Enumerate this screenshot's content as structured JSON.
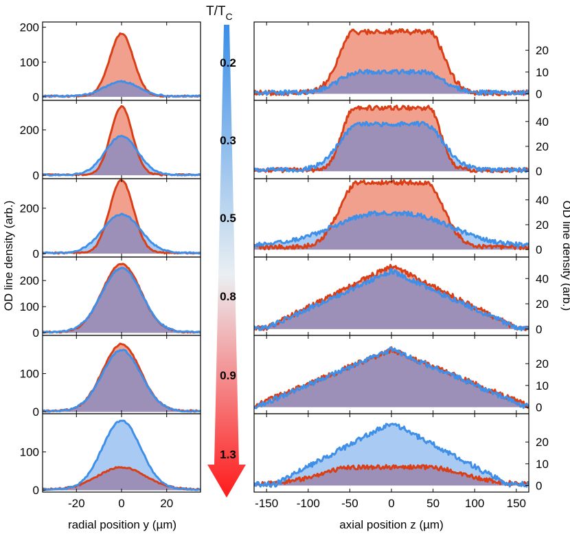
{
  "figure": {
    "left_ylabel": "OD line density (arb.)",
    "right_ylabel": "OD line density (arb.)",
    "left_xlabel": "radial position y (µm)",
    "right_xlabel": "axial position z (µm)",
    "arrow_title_main": "T/T",
    "arrow_title_sub": "C",
    "temperature_labels": [
      "0.2",
      "0.3",
      "0.5",
      "0.8",
      "0.9",
      "1.3"
    ],
    "arrow_colors": {
      "top": "#3a8ee8",
      "middle": "#eaeff2",
      "bottom": "#ff1a1a"
    }
  },
  "colors": {
    "red_line": "#d93e16",
    "blue_line": "#3f8fe8",
    "red_fill": "#f0a08c",
    "blue_fill": "#a9cbf3",
    "overlap_fill": "#9c90b8"
  },
  "chart_data": [
    {
      "type": "area",
      "title": "radial line density profiles",
      "xlabel": "radial position y (µm)",
      "ylabel": "OD line density (arb.)",
      "xlim": [
        -35,
        35
      ],
      "xticks": [
        -20,
        0,
        20
      ],
      "xtick_labels": [
        "-20",
        "0",
        "20"
      ],
      "series_names": [
        "red",
        "blue"
      ],
      "panels": [
        {
          "T_over_Tc": "0.2",
          "ylim": [
            -10,
            215
          ],
          "yticks": [
            0,
            100,
            200
          ],
          "red": {
            "amp": 180,
            "sigma": 5.2,
            "base": 2,
            "noise": 2
          },
          "blue": {
            "amp": 42,
            "sigma": 7.5,
            "base": 2,
            "noise": 2
          }
        },
        {
          "T_over_Tc": "0.3",
          "ylim": [
            -15,
            330
          ],
          "yticks": [
            0,
            200
          ],
          "red": {
            "amp": 300,
            "sigma": 4.8,
            "base": 2,
            "noise": 3
          },
          "blue": {
            "amp": 170,
            "sigma": 7.2,
            "base": 2,
            "noise": 3
          }
        },
        {
          "T_over_Tc": "0.5",
          "ylim": [
            -15,
            330
          ],
          "yticks": [
            0,
            200
          ],
          "red": {
            "amp": 320,
            "sigma": 5.3,
            "base": 3,
            "noise": 3
          },
          "blue": {
            "amp": 170,
            "sigma": 8.3,
            "base": 3,
            "noise": 3
          }
        },
        {
          "T_over_Tc": "0.8",
          "ylim": [
            -10,
            290
          ],
          "yticks": [
            0,
            100,
            200
          ],
          "red": {
            "amp": 262,
            "sigma": 8.5,
            "base": 2,
            "noise": 3
          },
          "blue": {
            "amp": 245,
            "sigma": 8.8,
            "base": 2,
            "noise": 3
          }
        },
        {
          "T_over_Tc": "0.9",
          "ylim": [
            -5,
            200
          ],
          "yticks": [
            0,
            100
          ],
          "red": {
            "amp": 175,
            "sigma": 8.4,
            "base": 2,
            "noise": 2
          },
          "blue": {
            "amp": 160,
            "sigma": 8.6,
            "base": 2,
            "noise": 2
          }
        },
        {
          "T_over_Tc": "1.3",
          "ylim": [
            -5,
            200
          ],
          "yticks": [
            0,
            100
          ],
          "red": {
            "amp": 58,
            "sigma": 10.5,
            "base": 2,
            "noise": 2
          },
          "blue": {
            "amp": 180,
            "sigma": 8.5,
            "base": 2,
            "noise": 2
          }
        }
      ]
    },
    {
      "type": "area",
      "title": "axial line density profiles",
      "xlabel": "axial position z (µm)",
      "ylabel": "OD line density (arb.)",
      "xlim": [
        -165,
        165
      ],
      "xticks": [
        -150,
        -100,
        -50,
        0,
        50,
        100,
        150
      ],
      "xtick_labels": [
        "-150",
        "-100",
        "-50",
        "0",
        "50",
        "100",
        "150"
      ],
      "series_names": [
        "red",
        "blue"
      ],
      "panels": [
        {
          "T_over_Tc": "0.2",
          "ylim": [
            -3,
            33
          ],
          "yticks": [
            0,
            10,
            20
          ],
          "red": {
            "amp": 28,
            "flat": 45,
            "edge": 18,
            "base": 0.5,
            "noise": 1.2
          },
          "blue": {
            "amp": 9.5,
            "flat": 38,
            "edge": 24,
            "base": 0.5,
            "noise": 1.0
          }
        },
        {
          "T_over_Tc": "0.3",
          "ylim": [
            -6,
            57
          ],
          "yticks": [
            0,
            20,
            40
          ],
          "red": {
            "amp": 50,
            "flat": 45,
            "edge": 14,
            "base": 1,
            "noise": 1.8
          },
          "blue": {
            "amp": 37,
            "flat": 38,
            "edge": 24,
            "base": 1,
            "noise": 1.8
          }
        },
        {
          "T_over_Tc": "0.5",
          "ylim": [
            -6,
            57
          ],
          "yticks": [
            0,
            20,
            40
          ],
          "red": {
            "amp": 52,
            "flat": 40,
            "edge": 22,
            "base": 2,
            "noise": 1.8
          },
          "blue": {
            "amp": 26,
            "flat": 15,
            "edge": 55,
            "base": 3,
            "noise": 1.8
          }
        },
        {
          "T_over_Tc": "0.8",
          "ylim": [
            -5,
            57
          ],
          "yticks": [
            0,
            20,
            40
          ],
          "red": {
            "amp": 49,
            "tri": 150,
            "base": 1,
            "noise": 2
          },
          "blue": {
            "amp": 45,
            "tri": 150,
            "base": 1,
            "noise": 2
          }
        },
        {
          "T_over_Tc": "0.9",
          "ylim": [
            -3,
            33
          ],
          "yticks": [
            0,
            10,
            20
          ],
          "red": {
            "amp": 26,
            "tri": 165,
            "base": 0.5,
            "noise": 1.2
          },
          "blue": {
            "amp": 26,
            "tri": 160,
            "base": 0.5,
            "noise": 1.2
          }
        },
        {
          "T_over_Tc": "1.3",
          "ylim": [
            -3,
            33
          ],
          "yticks": [
            0,
            10,
            20
          ],
          "red": {
            "amp": 8,
            "flat": 40,
            "edge": 45,
            "base": 0.5,
            "noise": 1.0
          },
          "blue": {
            "amp": 28.5,
            "tri": 140,
            "base": 0.5,
            "noise": 1.2
          }
        }
      ]
    }
  ]
}
